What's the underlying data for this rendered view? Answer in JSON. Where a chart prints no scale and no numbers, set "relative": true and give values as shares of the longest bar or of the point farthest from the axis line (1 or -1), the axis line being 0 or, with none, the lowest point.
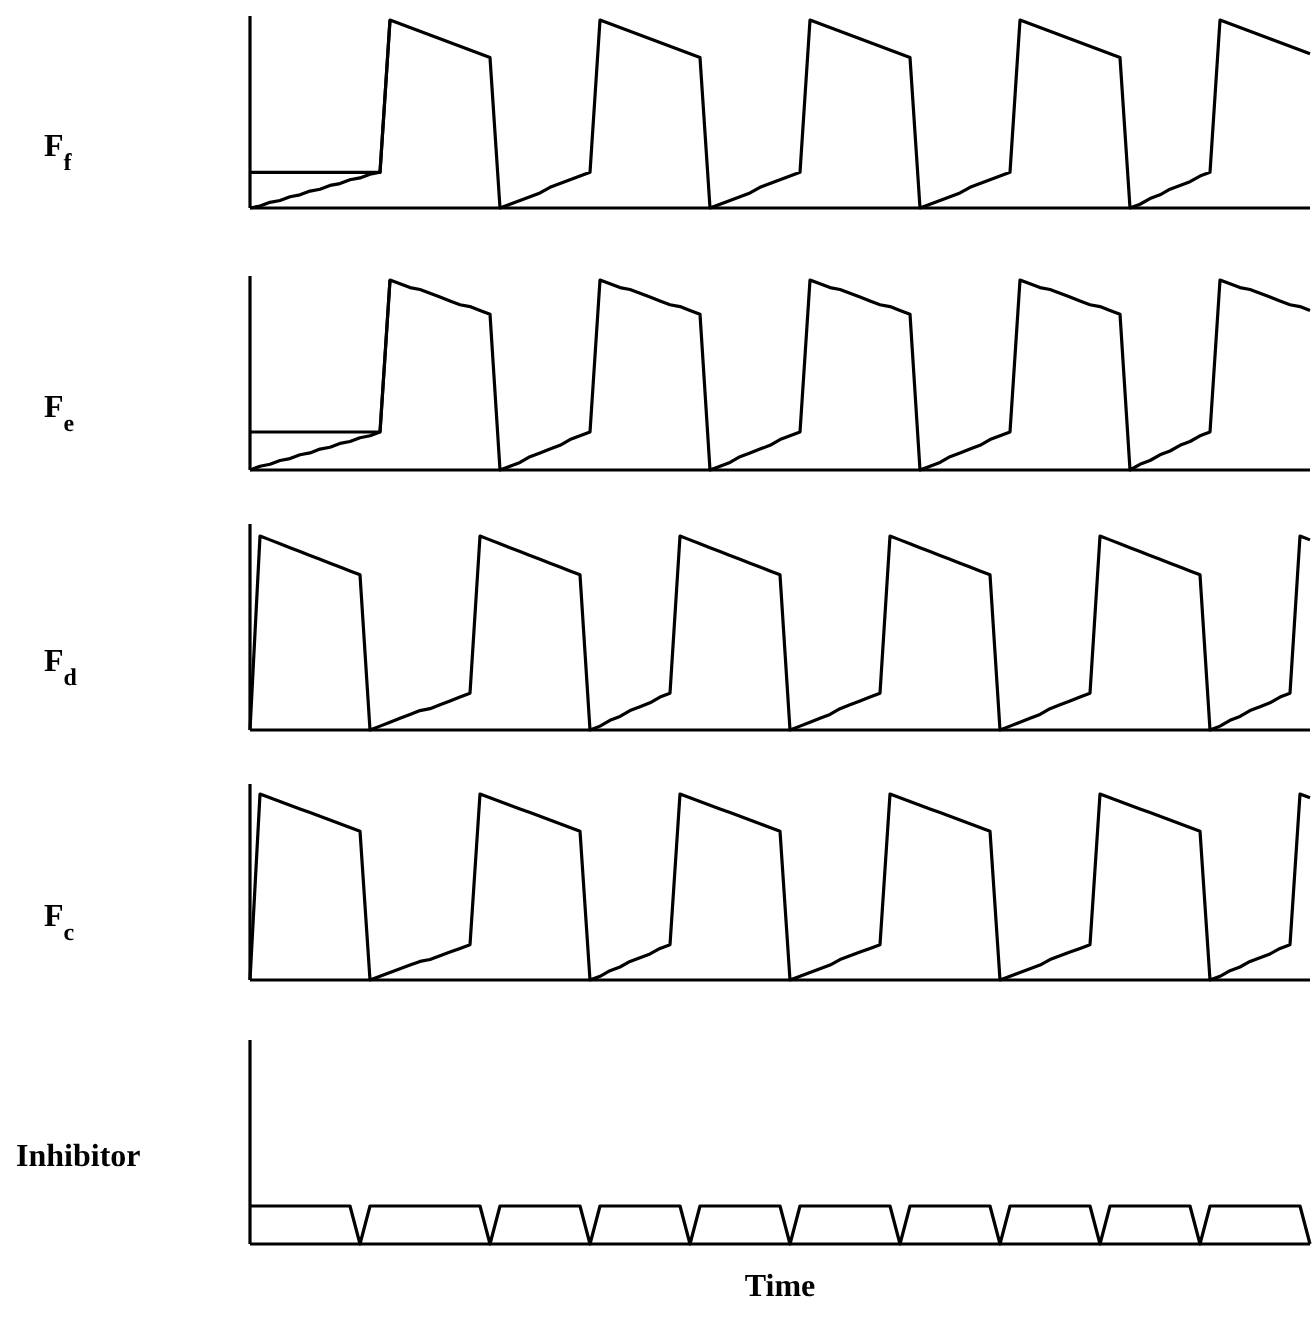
{
  "chart_data": [
    {
      "type": "line",
      "ylabel": "F$_{f}$",
      "relative": true,
      "marker": "none",
      "line_style": "solid",
      "categories": [
        null,
        null,
        null,
        null,
        null,
        null,
        null,
        null,
        null,
        null,
        null,
        null,
        null,
        null,
        null,
        null,
        null,
        null,
        null,
        null,
        null,
        null,
        null,
        null,
        null,
        null,
        null,
        null,
        null,
        null,
        null,
        null,
        null,
        null,
        null,
        null,
        null,
        null,
        null,
        null,
        null,
        null,
        null,
        null,
        null,
        null,
        null,
        null,
        null,
        null,
        null,
        null,
        null,
        null,
        null,
        null,
        null,
        null,
        null,
        null,
        null,
        null,
        null,
        null,
        null,
        null,
        null,
        null,
        null,
        null,
        null,
        null,
        null,
        null,
        null,
        null,
        null,
        null,
        null,
        null,
        null,
        null,
        null,
        null,
        null,
        null,
        null,
        null,
        null,
        null,
        null,
        null,
        null,
        null,
        null,
        null,
        null,
        null,
        null,
        null,
        null,
        null,
        null,
        null,
        null,
        null,
        null
      ],
      "series": [
        {
          "color": "#000000",
          "values": [
            0,
            0.01,
            0.03,
            0.04,
            0.06,
            0.07,
            0.09,
            0.1,
            0.12,
            0.13,
            0.15,
            0.16,
            0.18,
            0.19,
            1,
            0.98,
            0.96,
            0.94,
            0.92,
            0.9,
            0.88,
            0.86,
            0.84,
            0.82,
            0.8,
            0,
            0.02,
            0.04,
            0.06,
            0.08,
            0.11,
            0.13,
            0.15,
            0.17,
            0.19,
            1,
            0.98,
            0.96,
            0.94,
            0.92,
            0.9,
            0.88,
            0.86,
            0.84,
            0.82,
            0.8,
            0,
            0.02,
            0.04,
            0.06,
            0.08,
            0.11,
            0.13,
            0.15,
            0.17,
            0.19,
            1,
            0.98,
            0.96,
            0.94,
            0.92,
            0.9,
            0.88,
            0.86,
            0.84,
            0.82,
            0.8,
            0,
            0.02,
            0.04,
            0.06,
            0.08,
            0.11,
            0.13,
            0.15,
            0.17,
            0.19,
            1,
            0.98,
            0.96,
            0.94,
            0.92,
            0.9,
            0.88,
            0.86,
            0.84,
            0.82,
            0.8,
            0,
            0.02,
            0.05,
            0.07,
            0.1,
            0.12,
            0.14,
            0.17,
            0.19,
            1,
            0.98,
            0.96,
            0.94,
            0.92,
            0.9,
            0.88,
            0.86,
            0.84,
            0.82
          ]
        },
        {
          "color": "#000000",
          "values": [
            0.19,
            0.19,
            0.19,
            0.19,
            0.19,
            0.19,
            0.19,
            0.19,
            0.19,
            0.19,
            0.19,
            0.19,
            0.19,
            0.19,
            1,
            null,
            null,
            null,
            null,
            null,
            null,
            null,
            null,
            null,
            null,
            null,
            null,
            null,
            null,
            null,
            null,
            null,
            null,
            null,
            null,
            null,
            null,
            null,
            null,
            null,
            null,
            null,
            null,
            null,
            null,
            null,
            null,
            null,
            null,
            null,
            null,
            null,
            null,
            null,
            null,
            null,
            null,
            null,
            null,
            null,
            null,
            null,
            null,
            null,
            null,
            null,
            null,
            null,
            null,
            null,
            null,
            null,
            null,
            null,
            null,
            null,
            null,
            null,
            null,
            null,
            null,
            null,
            null,
            null,
            null,
            null,
            null,
            null,
            null,
            null,
            null,
            null,
            null,
            null,
            null,
            null,
            null,
            null,
            null,
            null,
            null,
            null,
            null,
            null,
            null,
            null,
            null
          ]
        }
      ]
    },
    {
      "type": "line",
      "ylabel": "F$_{e}$",
      "relative": true,
      "marker": "none",
      "line_style": "solid",
      "categories": [
        null,
        null,
        null,
        null,
        null,
        null,
        null,
        null,
        null,
        null,
        null,
        null,
        null,
        null,
        null,
        null,
        null,
        null,
        null,
        null,
        null,
        null,
        null,
        null,
        null,
        null,
        null,
        null,
        null,
        null,
        null,
        null,
        null,
        null,
        null,
        null,
        null,
        null,
        null,
        null,
        null,
        null,
        null,
        null,
        null,
        null,
        null,
        null,
        null,
        null,
        null,
        null,
        null,
        null,
        null,
        null,
        null,
        null,
        null,
        null,
        null,
        null,
        null,
        null,
        null,
        null,
        null,
        null,
        null,
        null,
        null,
        null,
        null,
        null,
        null,
        null,
        null,
        null,
        null,
        null,
        null,
        null,
        null,
        null,
        null,
        null,
        null,
        null,
        null,
        null,
        null,
        null,
        null,
        null,
        null,
        null,
        null,
        null,
        null,
        null,
        null,
        null,
        null,
        null,
        null,
        null,
        null
      ],
      "series": [
        {
          "color": "#000000",
          "values": [
            0,
            0.02,
            0.03,
            0.05,
            0.06,
            0.08,
            0.09,
            0.11,
            0.12,
            0.14,
            0.15,
            0.17,
            0.18,
            0.2,
            1,
            0.98,
            0.96,
            0.95,
            0.93,
            0.91,
            0.89,
            0.87,
            0.86,
            0.84,
            0.82,
            0,
            0.02,
            0.04,
            0.07,
            0.09,
            0.11,
            0.13,
            0.16,
            0.18,
            0.2,
            1,
            0.98,
            0.96,
            0.95,
            0.93,
            0.91,
            0.89,
            0.87,
            0.86,
            0.84,
            0.82,
            0,
            0.02,
            0.04,
            0.07,
            0.09,
            0.11,
            0.13,
            0.16,
            0.18,
            0.2,
            1,
            0.98,
            0.96,
            0.95,
            0.93,
            0.91,
            0.89,
            0.87,
            0.86,
            0.84,
            0.82,
            0,
            0.02,
            0.04,
            0.07,
            0.09,
            0.11,
            0.13,
            0.16,
            0.18,
            0.2,
            1,
            0.98,
            0.96,
            0.95,
            0.93,
            0.91,
            0.89,
            0.87,
            0.86,
            0.84,
            0.82,
            0,
            0.03,
            0.05,
            0.08,
            0.1,
            0.13,
            0.15,
            0.18,
            0.2,
            1,
            0.98,
            0.96,
            0.95,
            0.93,
            0.91,
            0.89,
            0.87,
            0.86,
            0.84
          ]
        },
        {
          "color": "#000000",
          "values": [
            0.2,
            0.2,
            0.2,
            0.2,
            0.2,
            0.2,
            0.2,
            0.2,
            0.2,
            0.2,
            0.2,
            0.2,
            0.2,
            0.2,
            1,
            null,
            null,
            null,
            null,
            null,
            null,
            null,
            null,
            null,
            null,
            null,
            null,
            null,
            null,
            null,
            null,
            null,
            null,
            null,
            null,
            null,
            null,
            null,
            null,
            null,
            null,
            null,
            null,
            null,
            null,
            null,
            null,
            null,
            null,
            null,
            null,
            null,
            null,
            null,
            null,
            null,
            null,
            null,
            null,
            null,
            null,
            null,
            null,
            null,
            null,
            null,
            null,
            null,
            null,
            null,
            null,
            null,
            null,
            null,
            null,
            null,
            null,
            null,
            null,
            null,
            null,
            null,
            null,
            null,
            null,
            null,
            null,
            null,
            null,
            null,
            null,
            null,
            null,
            null,
            null,
            null,
            null,
            null,
            null,
            null,
            null,
            null,
            null,
            null,
            null,
            null,
            null
          ]
        }
      ]
    },
    {
      "type": "line",
      "ylabel": "F$_{d}$",
      "relative": true,
      "marker": "none",
      "line_style": "solid",
      "categories": [
        null,
        null,
        null,
        null,
        null,
        null,
        null,
        null,
        null,
        null,
        null,
        null,
        null,
        null,
        null,
        null,
        null,
        null,
        null,
        null,
        null,
        null,
        null,
        null,
        null,
        null,
        null,
        null,
        null,
        null,
        null,
        null,
        null,
        null,
        null,
        null,
        null,
        null,
        null,
        null,
        null,
        null,
        null,
        null,
        null,
        null,
        null,
        null,
        null,
        null,
        null,
        null,
        null,
        null,
        null,
        null,
        null,
        null,
        null,
        null,
        null,
        null,
        null,
        null,
        null,
        null,
        null,
        null,
        null,
        null,
        null,
        null,
        null,
        null,
        null,
        null,
        null,
        null,
        null,
        null,
        null,
        null,
        null,
        null,
        null,
        null,
        null,
        null,
        null,
        null,
        null,
        null,
        null,
        null,
        null,
        null,
        null,
        null,
        null,
        null,
        null,
        null,
        null,
        null,
        null,
        null,
        null
      ],
      "series": [
        {
          "color": "#000000",
          "values": [
            0,
            1,
            0.98,
            0.96,
            0.94,
            0.92,
            0.9,
            0.88,
            0.86,
            0.84,
            0.82,
            0.8,
            0,
            0.02,
            0.04,
            0.06,
            0.08,
            0.1,
            0.11,
            0.13,
            0.15,
            0.17,
            0.19,
            1,
            0.98,
            0.96,
            0.94,
            0.92,
            0.9,
            0.88,
            0.86,
            0.84,
            0.82,
            0.8,
            0,
            0.02,
            0.05,
            0.07,
            0.1,
            0.12,
            0.14,
            0.17,
            0.19,
            1,
            0.98,
            0.96,
            0.94,
            0.92,
            0.9,
            0.88,
            0.86,
            0.84,
            0.82,
            0.8,
            0,
            0.02,
            0.04,
            0.06,
            0.08,
            0.11,
            0.13,
            0.15,
            0.17,
            0.19,
            1,
            0.98,
            0.96,
            0.94,
            0.92,
            0.9,
            0.88,
            0.86,
            0.84,
            0.82,
            0.8,
            0,
            0.02,
            0.04,
            0.06,
            0.08,
            0.11,
            0.13,
            0.15,
            0.17,
            0.19,
            1,
            0.98,
            0.96,
            0.94,
            0.92,
            0.9,
            0.88,
            0.86,
            0.84,
            0.82,
            0.8,
            0,
            0.02,
            0.05,
            0.07,
            0.1,
            0.12,
            0.14,
            0.17,
            0.19,
            1,
            0.98
          ]
        }
      ]
    },
    {
      "type": "line",
      "ylabel": "F$_{c}$",
      "relative": true,
      "marker": "none",
      "line_style": "solid",
      "categories": [
        null,
        null,
        null,
        null,
        null,
        null,
        null,
        null,
        null,
        null,
        null,
        null,
        null,
        null,
        null,
        null,
        null,
        null,
        null,
        null,
        null,
        null,
        null,
        null,
        null,
        null,
        null,
        null,
        null,
        null,
        null,
        null,
        null,
        null,
        null,
        null,
        null,
        null,
        null,
        null,
        null,
        null,
        null,
        null,
        null,
        null,
        null,
        null,
        null,
        null,
        null,
        null,
        null,
        null,
        null,
        null,
        null,
        null,
        null,
        null,
        null,
        null,
        null,
        null,
        null,
        null,
        null,
        null,
        null,
        null,
        null,
        null,
        null,
        null,
        null,
        null,
        null,
        null,
        null,
        null,
        null,
        null,
        null,
        null,
        null,
        null,
        null,
        null,
        null,
        null,
        null,
        null,
        null,
        null,
        null,
        null,
        null,
        null,
        null,
        null,
        null,
        null,
        null,
        null,
        null,
        null,
        null
      ],
      "series": [
        {
          "color": "#000000",
          "values": [
            0,
            1,
            0.98,
            0.96,
            0.94,
            0.92,
            0.9,
            0.88,
            0.86,
            0.84,
            0.82,
            0.8,
            0,
            0.02,
            0.04,
            0.06,
            0.08,
            0.1,
            0.11,
            0.13,
            0.15,
            0.17,
            0.19,
            1,
            0.98,
            0.96,
            0.94,
            0.92,
            0.9,
            0.88,
            0.86,
            0.84,
            0.82,
            0.8,
            0,
            0.02,
            0.05,
            0.07,
            0.1,
            0.12,
            0.14,
            0.17,
            0.19,
            1,
            0.98,
            0.96,
            0.94,
            0.92,
            0.9,
            0.88,
            0.86,
            0.84,
            0.82,
            0.8,
            0,
            0.02,
            0.04,
            0.06,
            0.08,
            0.11,
            0.13,
            0.15,
            0.17,
            0.19,
            1,
            0.98,
            0.96,
            0.94,
            0.92,
            0.9,
            0.88,
            0.86,
            0.84,
            0.82,
            0.8,
            0,
            0.02,
            0.04,
            0.06,
            0.08,
            0.11,
            0.13,
            0.15,
            0.17,
            0.19,
            1,
            0.98,
            0.96,
            0.94,
            0.92,
            0.9,
            0.88,
            0.86,
            0.84,
            0.82,
            0.8,
            0,
            0.02,
            0.05,
            0.07,
            0.1,
            0.12,
            0.14,
            0.17,
            0.19,
            1,
            0.98
          ]
        }
      ]
    },
    {
      "type": "line",
      "ylabel": "Inhibitor",
      "xlabel": "Time",
      "relative": true,
      "marker": "none",
      "line_style": "solid",
      "categories": [
        null,
        null,
        null,
        null,
        null,
        null,
        null,
        null,
        null,
        null,
        null,
        null,
        null,
        null,
        null,
        null,
        null,
        null,
        null,
        null,
        null,
        null,
        null,
        null,
        null,
        null,
        null,
        null,
        null,
        null,
        null,
        null,
        null,
        null,
        null,
        null,
        null,
        null,
        null,
        null,
        null,
        null,
        null,
        null,
        null,
        null,
        null,
        null,
        null,
        null,
        null,
        null,
        null,
        null,
        null,
        null,
        null,
        null,
        null,
        null,
        null,
        null,
        null,
        null,
        null,
        null,
        null,
        null,
        null,
        null,
        null,
        null,
        null,
        null,
        null,
        null,
        null,
        null,
        null,
        null,
        null,
        null,
        null,
        null,
        null,
        null,
        null,
        null,
        null,
        null,
        null,
        null,
        null,
        null,
        null,
        null,
        null,
        null,
        null,
        null,
        null,
        null,
        null,
        null,
        null,
        null,
        null
      ],
      "series": [
        {
          "color": "#000000",
          "values": [
            1,
            1,
            1,
            1,
            1,
            1,
            1,
            1,
            1,
            1,
            1,
            0,
            1,
            1,
            1,
            1,
            1,
            1,
            1,
            1,
            1,
            1,
            1,
            1,
            0,
            1,
            1,
            1,
            1,
            1,
            1,
            1,
            1,
            1,
            0,
            1,
            1,
            1,
            1,
            1,
            1,
            1,
            1,
            1,
            0,
            1,
            1,
            1,
            1,
            1,
            1,
            1,
            1,
            1,
            0,
            1,
            1,
            1,
            1,
            1,
            1,
            1,
            1,
            1,
            1,
            0,
            1,
            1,
            1,
            1,
            1,
            1,
            1,
            1,
            1,
            0,
            1,
            1,
            1,
            1,
            1,
            1,
            1,
            1,
            1,
            0,
            1,
            1,
            1,
            1,
            1,
            1,
            1,
            1,
            1,
            0,
            1,
            1,
            1,
            1,
            1,
            1,
            1,
            1,
            1,
            1,
            0
          ]
        }
      ]
    }
  ]
}
